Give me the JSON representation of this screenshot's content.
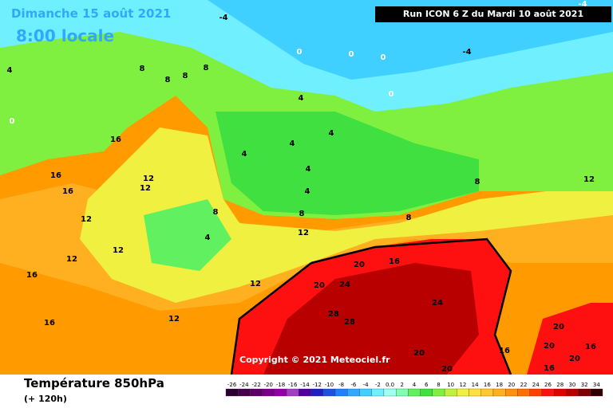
{
  "header": {
    "date": "Dimanche 15 août 2021",
    "time": "8:00 locale",
    "run": "Run ICON 6 Z du Mardi 10 août 2021",
    "copyright": "Copyright © 2021 Meteociel.fr"
  },
  "legend": {
    "title": "Température 850hPa",
    "lead": "(+ 120h)",
    "ticks": [
      -26,
      -24,
      -22,
      -20,
      -18,
      -16,
      -14,
      -12,
      -10,
      -8,
      -6,
      -4,
      -2,
      {
        "value": 0,
        "label": "0.0"
      },
      2,
      4,
      6,
      8,
      10,
      12,
      14,
      16,
      18,
      20,
      22,
      24,
      26,
      28,
      30,
      32,
      34
    ],
    "colors": [
      "#2a0030",
      "#44004c",
      "#5c0068",
      "#780088",
      "#9400a8",
      "#a040c0",
      "#5000a0",
      "#2020c0",
      "#2050e0",
      "#2080ff",
      "#30a8ff",
      "#40d0ff",
      "#70f0ff",
      "#a0fff0",
      "#80ffb0",
      "#60f060",
      "#40e040",
      "#80f040",
      "#c0f040",
      "#f0f040",
      "#ffe040",
      "#ffc830",
      "#ffb020",
      "#ff9010",
      "#ff7000",
      "#ff4000",
      "#ff1010",
      "#e00000",
      "#b80000",
      "#800000",
      "#300000"
    ]
  },
  "map_labels": [
    "-4",
    "-4",
    "0",
    "0",
    "0",
    "0",
    "0",
    "-4",
    "4",
    "8",
    "8",
    "8",
    "8",
    "16",
    "16",
    "16",
    "12",
    "12",
    "12",
    "4",
    "4",
    "4",
    "4",
    "4",
    "4",
    "4",
    "8",
    "8",
    "8",
    "12",
    "12",
    "12",
    "12",
    "16",
    "16",
    "20",
    "20",
    "24",
    "28",
    "28",
    "24",
    "20",
    "20",
    "20",
    "16",
    "16",
    "16",
    "20",
    "20",
    "12",
    "8",
    "12",
    "16"
  ]
}
